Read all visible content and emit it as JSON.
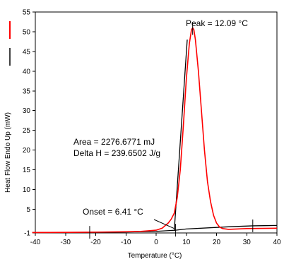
{
  "chart_data": {
    "type": "line",
    "title": "",
    "xlabel": "Temperature (°C)",
    "ylabel": "Heat Flow Endo Up (mW)",
    "xlim": [
      -40,
      40
    ],
    "ylim": [
      -1,
      55
    ],
    "x_ticks": [
      -40,
      -30,
      -20,
      -10,
      0,
      10,
      20,
      30,
      40
    ],
    "y_ticks": [
      -1,
      5,
      10,
      15,
      20,
      25,
      30,
      35,
      40,
      45,
      50,
      55
    ],
    "legend": "left-vertical",
    "colors": {
      "dsc_curve": "#ff0000",
      "baseline": "#000000"
    },
    "series": [
      {
        "key": "dsc_curve",
        "color": "#ff0000",
        "points": [
          [
            -41,
            -0.9
          ],
          [
            -30,
            -0.85
          ],
          [
            -20,
            -0.8
          ],
          [
            -10,
            -0.7
          ],
          [
            -5,
            -0.6
          ],
          [
            0,
            -0.3
          ],
          [
            2,
            0.2
          ],
          [
            4,
            1.5
          ],
          [
            5,
            2.5
          ],
          [
            6,
            4
          ],
          [
            7,
            8
          ],
          [
            8,
            15
          ],
          [
            9,
            26
          ],
          [
            10,
            38
          ],
          [
            11,
            47
          ],
          [
            11.7,
            50.5
          ],
          [
            12.09,
            51
          ],
          [
            12.5,
            50.5
          ],
          [
            13,
            48
          ],
          [
            14,
            40
          ],
          [
            15,
            30
          ],
          [
            16,
            20
          ],
          [
            17,
            12
          ],
          [
            18,
            7
          ],
          [
            19,
            3.5
          ],
          [
            20,
            1.5
          ],
          [
            21,
            0.5
          ],
          [
            22,
            0.1
          ],
          [
            24,
            -0.1
          ],
          [
            30,
            0.1
          ],
          [
            40,
            0.2
          ]
        ]
      },
      {
        "key": "baseline",
        "color": "#000000",
        "points": [
          [
            -41,
            -0.9
          ],
          [
            -22,
            -0.85
          ],
          [
            -10,
            -0.75
          ],
          [
            0,
            -0.6
          ],
          [
            6.41,
            -0.3
          ],
          [
            10,
            0
          ],
          [
            20,
            0.4
          ],
          [
            25,
            0.6
          ],
          [
            32,
            0.8
          ],
          [
            40,
            0.9
          ]
        ]
      },
      {
        "key": "onset_tangent",
        "color": "#000000",
        "points": [
          [
            6.0,
            -0.5
          ],
          [
            10.3,
            48
          ]
        ]
      }
    ],
    "integration_limits": [
      -22,
      32
    ],
    "markers": [
      {
        "x": -22,
        "y": -0.85
      },
      {
        "x": 6.41,
        "y": -0.3
      },
      {
        "x": 12.09,
        "y": 51
      },
      {
        "x": 32,
        "y": 0.8
      }
    ],
    "annotations": {
      "peak": "Peak = 12.09 °C",
      "area": "Area = 2276.6771 mJ",
      "delta_h": "Delta H = 239.6502 J/g",
      "onset": "Onset = 6.41 °C"
    }
  }
}
